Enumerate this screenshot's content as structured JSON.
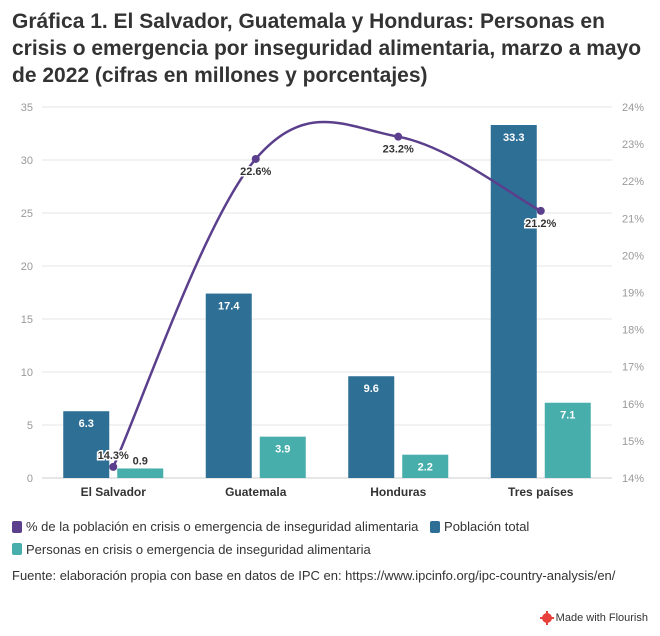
{
  "title": "Gráfica 1. El Salvador, Guatemala y Honduras: Personas en crisis o emergencia por inseguridad alimentaria, marzo a mayo de 2022 (cifras en millones y porcentajes)",
  "chart_data": {
    "type": "bar",
    "categories": [
      "El Salvador",
      "Guatemala",
      "Honduras",
      "Tres países"
    ],
    "series": [
      {
        "name": "Población total",
        "type": "bar",
        "axis": "left",
        "color": "#2e6f96",
        "values": [
          6.3,
          17.4,
          9.6,
          33.3
        ],
        "labels": [
          "6.3",
          "17.4",
          "9.6",
          "33.3"
        ]
      },
      {
        "name": "Personas en crisis o emergencia de inseguridad alimentaria",
        "type": "bar",
        "axis": "left",
        "color": "#47aeac",
        "values": [
          0.9,
          3.9,
          2.2,
          7.1
        ],
        "labels": [
          "0.9",
          "3.9",
          "2.2",
          "7.1"
        ]
      },
      {
        "name": "% de la población en crisis o emergencia de inseguridad alimentaria",
        "type": "line",
        "axis": "right",
        "color": "#5b3f8c",
        "values": [
          14.3,
          22.6,
          23.2,
          21.2
        ],
        "labels": [
          "14.3%",
          "22.6%",
          "23.2%",
          "21.2%"
        ]
      }
    ],
    "y_left": {
      "min": 0,
      "max": 35,
      "ticks": [
        "0",
        "5",
        "10",
        "15",
        "20",
        "25",
        "30",
        "35"
      ]
    },
    "y_right": {
      "min": 14,
      "max": 24,
      "ticks": [
        "14%",
        "15%",
        "16%",
        "17%",
        "18%",
        "19%",
        "20%",
        "21%",
        "22%",
        "23%",
        "24%"
      ]
    },
    "grid": true
  },
  "legend": [
    {
      "label": "% de la población en crisis o emergencia de inseguridad alimentaria",
      "color": "#5b3f8c"
    },
    {
      "label": "Población total",
      "color": "#2e6f96"
    },
    {
      "label": "Personas en crisis o emergencia de inseguridad alimentaria",
      "color": "#47aeac"
    }
  ],
  "source": "Fuente: elaboración propia con base en datos de IPC en: https://www.ipcinfo.org/ipc-country-analysis/en/",
  "credit": "Made with Flourish"
}
